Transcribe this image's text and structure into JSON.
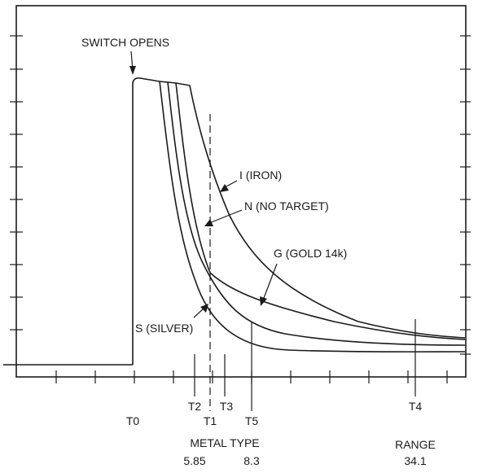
{
  "labels": {
    "switch_opens": "SWITCH OPENS",
    "iron": "I (IRON)",
    "no_target": "N (NO TARGET)",
    "gold": "G (GOLD 14k)",
    "silver": "S (SILVER)",
    "t0": "T0",
    "t1": "T1",
    "t2": "T2",
    "t3": "T3",
    "t4": "T4",
    "t5": "T5",
    "metal_type": "METAL TYPE",
    "metal_value_1": "5.85",
    "metal_value_2": "8.3",
    "range": "RANGE",
    "range_value": "34.1"
  }
}
